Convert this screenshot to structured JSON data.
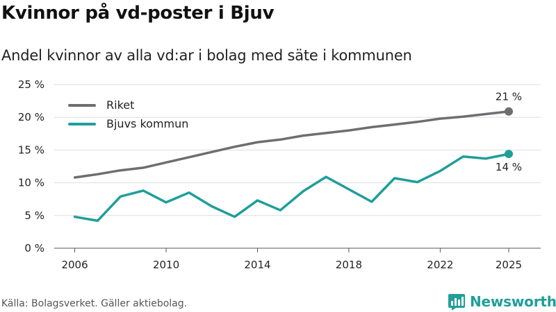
{
  "title": "Kvinnor på vd-poster i Bjuv",
  "subtitle": "Andel kvinnor av alla vd:ar i bolag med säte i kommunen",
  "source": "Källa: Bolagsverket. Gäller aktiebolag.",
  "brand": {
    "name": "Newsworthy",
    "icon": "newsworthy-logo-icon",
    "color": "#1f9e9a"
  },
  "chart_data": {
    "type": "line",
    "title": "Kvinnor på vd-poster i Bjuv",
    "xlabel": "",
    "ylabel": "",
    "x": [
      2006,
      2007,
      2008,
      2009,
      2010,
      2011,
      2012,
      2013,
      2014,
      2015,
      2016,
      2017,
      2018,
      2019,
      2020,
      2021,
      2022,
      2023,
      2024,
      2025
    ],
    "x_ticks": [
      2006,
      2010,
      2014,
      2018,
      2022,
      2025
    ],
    "x_tick_labels": [
      "2006",
      "2010",
      "2014",
      "2018",
      "2022",
      "2025"
    ],
    "ylim": [
      0,
      25
    ],
    "y_ticks": [
      0,
      5,
      10,
      15,
      20,
      25
    ],
    "y_tick_labels": [
      "0 %",
      "5 %",
      "10 %",
      "15 %",
      "20 %",
      "25 %"
    ],
    "grid": true,
    "legend_position": "top-left",
    "series": [
      {
        "name": "Riket",
        "color": "#6e6e72",
        "values": [
          10.8,
          11.3,
          11.9,
          12.3,
          13.1,
          13.9,
          14.7,
          15.5,
          16.2,
          16.6,
          17.2,
          17.6,
          18.0,
          18.5,
          18.9,
          19.3,
          19.8,
          20.1,
          20.5,
          20.9
        ],
        "end_label": "21 %",
        "end_label_position": "above"
      },
      {
        "name": "Bjuvs kommun",
        "color": "#1f9e9a",
        "values": [
          4.8,
          4.2,
          7.9,
          8.8,
          7.0,
          8.5,
          6.4,
          4.8,
          7.3,
          5.8,
          8.7,
          10.9,
          9.0,
          7.1,
          10.7,
          10.1,
          11.8,
          14.0,
          13.7,
          14.4
        ],
        "end_label": "14 %",
        "end_label_position": "below"
      }
    ]
  }
}
